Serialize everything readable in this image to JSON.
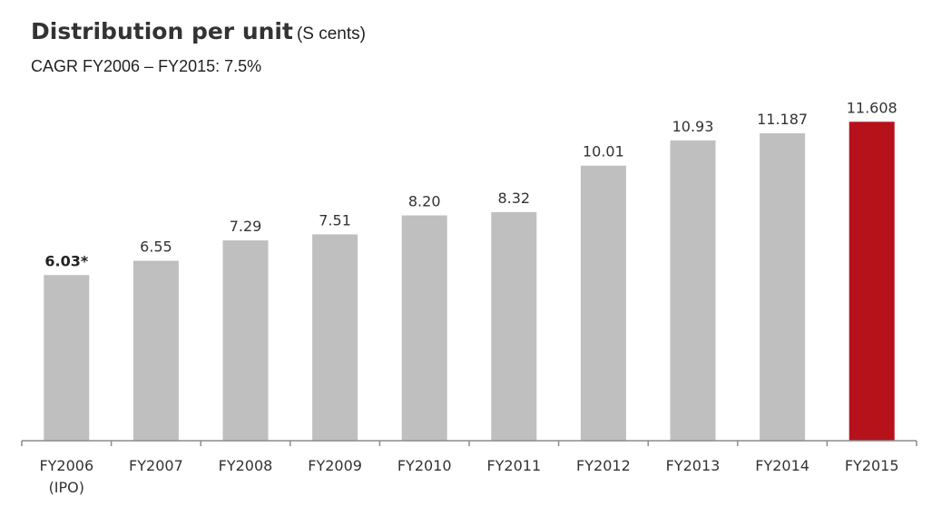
{
  "title": {
    "main": "Distribution per unit",
    "unit": "(S cents)"
  },
  "subtitle": "CAGR FY2006 – FY2015: 7.5%",
  "chart_data": {
    "type": "bar",
    "title": "Distribution per unit",
    "subtitle": "CAGR FY2006 – FY2015: 7.5%",
    "ylabel": "(S cents)",
    "categories": [
      "FY2006\n(IPO)",
      "FY2007",
      "FY2008",
      "FY2009",
      "FY2010",
      "FY2011",
      "FY2012",
      "FY2013",
      "FY2014",
      "FY2015"
    ],
    "values": [
      6.03,
      6.55,
      7.29,
      7.51,
      8.2,
      8.32,
      10.01,
      10.93,
      11.187,
      11.608
    ],
    "value_labels": [
      "6.03*",
      "6.55",
      "7.29",
      "7.51",
      "8.20",
      "8.32",
      "10.01",
      "10.93",
      "11.187",
      "11.608"
    ],
    "ylim": [
      0,
      12.0
    ],
    "grid": false,
    "colors": {
      "default": "#bfbfbf",
      "highlight": "#b5121b"
    },
    "highlight_index": 9,
    "bold_label_index": 0
  }
}
